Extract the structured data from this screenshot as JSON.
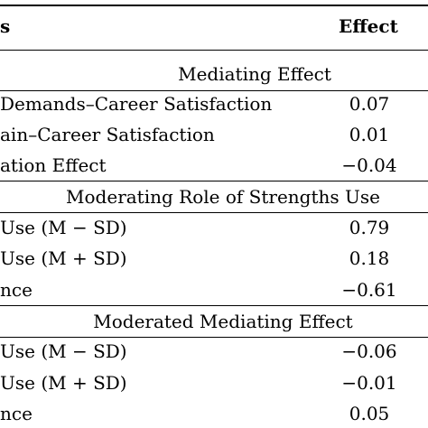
{
  "header": {
    "col1_fragment": "s",
    "col2": "Effect"
  },
  "sections": [
    {
      "title": "Mediating Effect",
      "rows": [
        {
          "label": "Demands–Career Satisfaction",
          "value": "0.07"
        },
        {
          "label": "ain–Career Satisfaction",
          "value": "0.01"
        },
        {
          "label": "ation Effect",
          "value": "−0.04"
        }
      ]
    },
    {
      "title": "Moderating Role of Strengths Use",
      "rows": [
        {
          "label": "Use (M − SD)",
          "value": "0.79"
        },
        {
          "label": "Use (M + SD)",
          "value": "0.18"
        },
        {
          "label": "nce",
          "value": "−0.61"
        }
      ]
    },
    {
      "title": "Moderated Mediating Effect",
      "rows": [
        {
          "label": "Use (M − SD)",
          "value": "−0.06"
        },
        {
          "label": "Use (M + SD)",
          "value": "−0.01"
        },
        {
          "label": "nce",
          "value": "0.05"
        }
      ]
    }
  ]
}
